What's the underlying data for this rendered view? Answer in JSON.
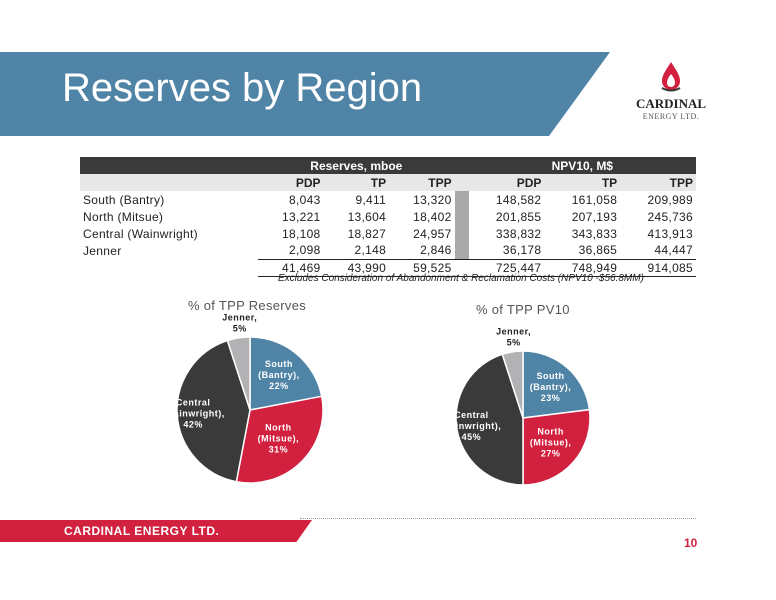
{
  "slide": {
    "title": "Reserves by Region",
    "page_number": "10",
    "footer_text": "CARDINAL ENERGY LTD.",
    "footnote": "Excludes Consideration of Abandonment & Reclamation Costs (NPV10 -$56.8MM)"
  },
  "logo": {
    "name": "CARDINAL",
    "subtitle": "ENERGY LTD.",
    "icon": "flame-drop-icon"
  },
  "colors": {
    "accent_blue": "#4f84a6",
    "accent_red": "#d2213f",
    "dark": "#3a3a3a",
    "grey": "#b2b2b5"
  },
  "table": {
    "group_headers": [
      "Reserves, mboe",
      "NPV10, M$"
    ],
    "columns": [
      "PDP",
      "TP",
      "TPP",
      "PDP",
      "TP",
      "TPP"
    ],
    "rows": [
      {
        "label": "South (Bantry)",
        "values": [
          "8,043",
          "9,411",
          "13,320",
          "148,582",
          "161,058",
          "209,989"
        ]
      },
      {
        "label": "North (Mitsue)",
        "values": [
          "13,221",
          "13,604",
          "18,402",
          "201,855",
          "207,193",
          "245,736"
        ]
      },
      {
        "label": "Central (Wainwright)",
        "values": [
          "18,108",
          "18,827",
          "24,957",
          "338,832",
          "343,833",
          "413,913"
        ]
      },
      {
        "label": "Jenner",
        "values": [
          "2,098",
          "2,148",
          "2,846",
          "36,178",
          "36,865",
          "44,447"
        ]
      }
    ],
    "totals": [
      "41,469",
      "43,990",
      "59,525",
      "725,447",
      "748,949",
      "914,085"
    ]
  },
  "chart_data": [
    {
      "type": "pie",
      "title": "% of TPP Reserves",
      "slices": [
        {
          "label_lines": [
            "South",
            "(Bantry),",
            "22%"
          ],
          "value": 22,
          "color": "#4f84a6",
          "text_color": "#ffffff"
        },
        {
          "label_lines": [
            "North",
            "(Mitsue),",
            "31%"
          ],
          "value": 31,
          "color": "#d2213f",
          "text_color": "#ffffff"
        },
        {
          "label_lines": [
            "Central",
            "(Wainwright),",
            "42%"
          ],
          "value": 42,
          "color": "#3a3a3a",
          "text_color": "#ffffff"
        },
        {
          "label_lines": [
            "Jenner,",
            "5%"
          ],
          "value": 5,
          "color": "#b2b2b5",
          "text_color": "#222222"
        }
      ]
    },
    {
      "type": "pie",
      "title": "% of TPP PV10",
      "slices": [
        {
          "label_lines": [
            "South",
            "(Bantry),",
            "23%"
          ],
          "value": 23,
          "color": "#4f84a6",
          "text_color": "#ffffff"
        },
        {
          "label_lines": [
            "North",
            "(Mitsue),",
            "27%"
          ],
          "value": 27,
          "color": "#d2213f",
          "text_color": "#ffffff"
        },
        {
          "label_lines": [
            "Central",
            "Wainwright),",
            "45%"
          ],
          "value": 45,
          "color": "#3a3a3a",
          "text_color": "#ffffff"
        },
        {
          "label_lines": [
            "Jenner,",
            "5%"
          ],
          "value": 5,
          "color": "#b2b2b5",
          "text_color": "#222222"
        }
      ]
    }
  ]
}
